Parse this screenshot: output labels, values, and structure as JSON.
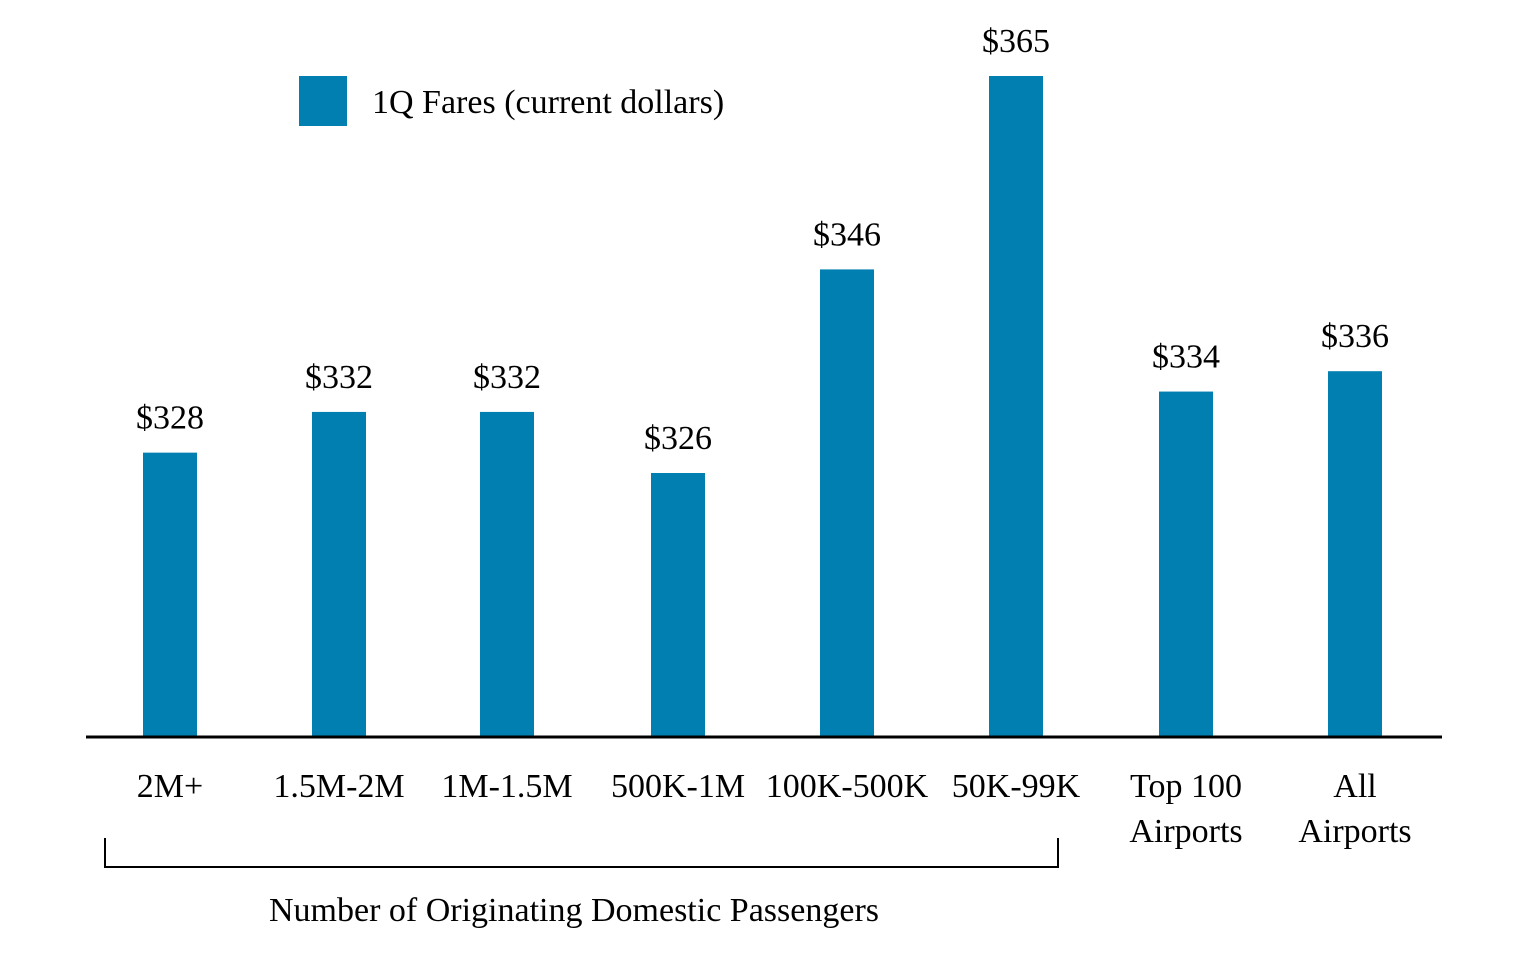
{
  "chart_data": {
    "type": "bar",
    "categories": [
      [
        "2M+"
      ],
      [
        "1.5M-2M"
      ],
      [
        "1M-1.5M"
      ],
      [
        "500K-1M"
      ],
      [
        "100K-500K"
      ],
      [
        "50K-99K"
      ],
      [
        "Top 100",
        "Airports"
      ],
      [
        "All",
        "Airports"
      ]
    ],
    "series": [
      {
        "name": "1Q Fares (current dollars)",
        "values": [
          328,
          332,
          332,
          326,
          346,
          365,
          334,
          336
        ],
        "labels": [
          "$328",
          "$332",
          "$332",
          "$326",
          "$346",
          "$365",
          "$334",
          "$336"
        ],
        "color": "#007FB0"
      }
    ],
    "group_label": "Number of Originating Domestic Passengers",
    "legend_position": "top-left",
    "axis_line_color": "#000000",
    "grid": false
  }
}
